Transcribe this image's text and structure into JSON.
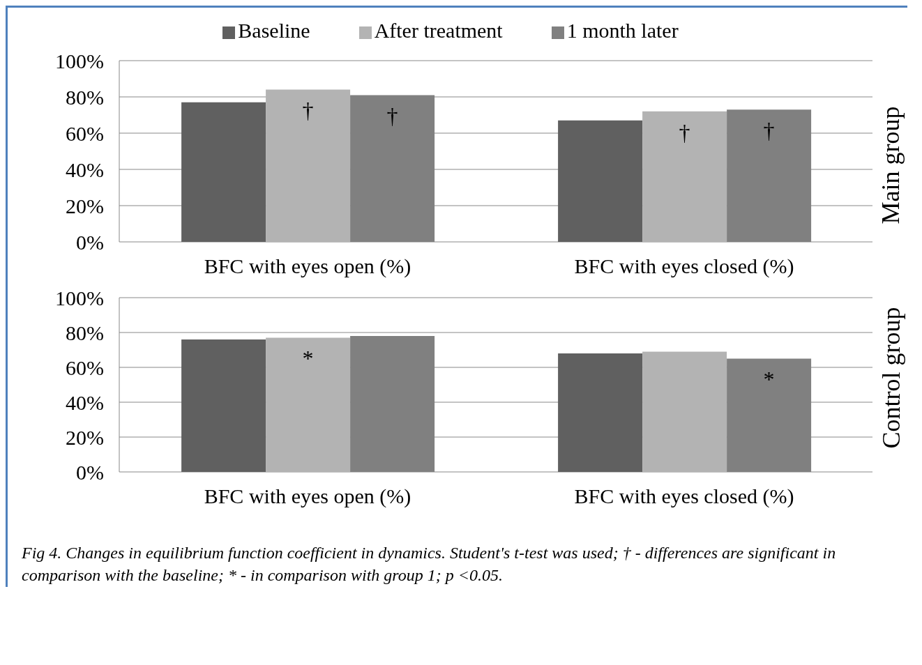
{
  "chart_data": [
    {
      "type": "bar",
      "categories": [
        "BFC with eyes open (%)",
        "BFC with eyes closed (%)"
      ],
      "ylabel": "Main group",
      "ylim": [
        0,
        100
      ],
      "yticks": [
        {
          "value": 0,
          "label": "0%"
        },
        {
          "value": 20,
          "label": "20%"
        },
        {
          "value": 40,
          "label": "40%"
        },
        {
          "value": 60,
          "label": "60%"
        },
        {
          "value": 80,
          "label": "80%"
        },
        {
          "value": 100,
          "label": "100%"
        }
      ],
      "grid": "y",
      "legend": "top",
      "series": [
        {
          "name": "Baseline",
          "color": "#606060",
          "values": [
            77,
            67
          ]
        },
        {
          "name": "After treatment",
          "color": "#b3b3b3",
          "values": [
            84,
            72
          ],
          "value_labels": [
            "†",
            "†"
          ]
        },
        {
          "name": "1 month later",
          "color": "#808080",
          "values": [
            81,
            73
          ],
          "value_labels": [
            "†",
            "†"
          ]
        }
      ]
    },
    {
      "type": "bar",
      "categories": [
        "BFC with eyes open (%)",
        "BFC with eyes closed (%)"
      ],
      "ylabel": "Control group",
      "ylim": [
        0,
        100
      ],
      "yticks": [
        {
          "value": 0,
          "label": "0%"
        },
        {
          "value": 20,
          "label": "20%"
        },
        {
          "value": 40,
          "label": "40%"
        },
        {
          "value": 60,
          "label": "60%"
        },
        {
          "value": 80,
          "label": "80%"
        },
        {
          "value": 100,
          "label": "100%"
        }
      ],
      "grid": "y",
      "legend": false,
      "series": [
        {
          "color": "#606060",
          "values": [
            76,
            68
          ]
        },
        {
          "color": "#b3b3b3",
          "values": [
            77,
            69
          ],
          "value_labels": [
            "*",
            null
          ]
        },
        {
          "color": "#808080",
          "values": [
            78,
            65
          ],
          "value_labels": [
            null,
            "*"
          ]
        }
      ],
      "annotations": [
        "Fig 4.  Changes in equilibrium function coefficient in dynamics. Student's t-test was used; † - differences are significant in comparison with the baseline; * - in comparison with group 1; p <0.05."
      ]
    }
  ]
}
